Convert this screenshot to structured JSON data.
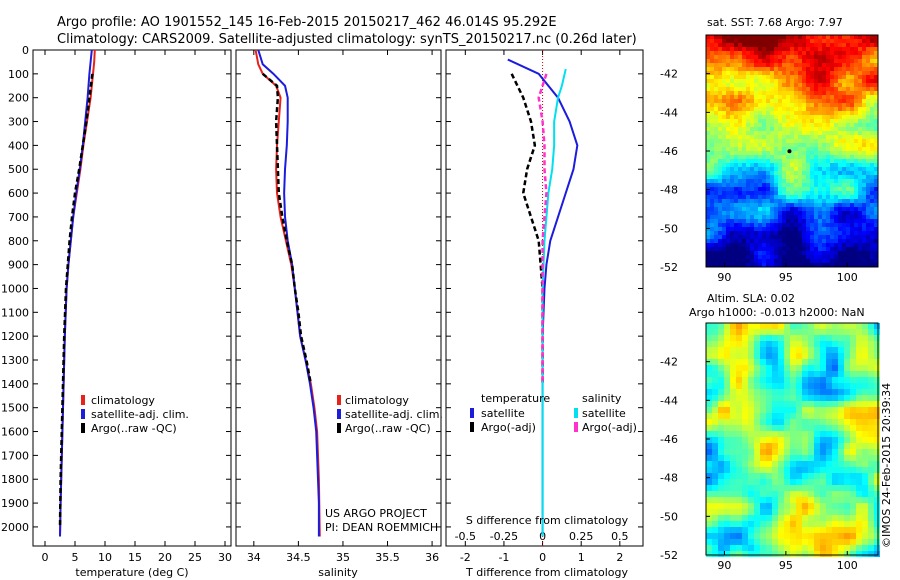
{
  "header": {
    "title_line1": "Argo profile: AO 1901552_145 16-Feb-2015 20150217_462 46.014S 95.292E",
    "title_line2": "Climatology: CARS2009. Satellite-adjusted climatology: synTS_20150217.nc (0.26d later)"
  },
  "credits": {
    "project_line1": "US ARGO PROJECT",
    "project_line2": "PI: DEAN ROEMMICH",
    "stamp": "©IMOS 24-Feb-2015 20:39:34"
  },
  "colors": {
    "climatology": "#e8221b",
    "satellite": "#1c1cdc",
    "argo": "#000000",
    "satellite_s": "#00e0f0",
    "argo_s": "#ff33cc"
  },
  "chart_data": [
    {
      "type": "line",
      "id": "temperature",
      "xlabel": "temperature (deg C)",
      "ylabel": "",
      "xlim": [
        -2,
        31
      ],
      "ylim": [
        2080,
        0
      ],
      "xticks": [
        0,
        5,
        10,
        15,
        20,
        25,
        30
      ],
      "yticks": [
        0,
        100,
        200,
        300,
        400,
        500,
        600,
        700,
        800,
        900,
        1000,
        1100,
        1200,
        1300,
        1400,
        1500,
        1600,
        1700,
        1800,
        1900,
        2000
      ],
      "legend": [
        "climatology",
        "satellite-adj. clim.",
        "Argo(..raw -QC)"
      ],
      "series": [
        {
          "name": "climatology",
          "color": "#e8221b",
          "points": [
            [
              8.3,
              0
            ],
            [
              8.2,
              50
            ],
            [
              8.0,
              100
            ],
            [
              7.6,
              200
            ],
            [
              7.0,
              300
            ],
            [
              6.4,
              400
            ],
            [
              5.9,
              500
            ],
            [
              5.3,
              600
            ],
            [
              4.7,
              700
            ],
            [
              4.3,
              800
            ],
            [
              3.9,
              900
            ],
            [
              3.6,
              1000
            ],
            [
              3.3,
              1200
            ],
            [
              3.1,
              1400
            ],
            [
              2.9,
              1600
            ],
            [
              2.7,
              1800
            ],
            [
              2.6,
              1900
            ],
            [
              2.5,
              2040
            ]
          ]
        },
        {
          "name": "satellite-adj. clim.",
          "color": "#1c1cdc",
          "points": [
            [
              7.8,
              0
            ],
            [
              7.6,
              50
            ],
            [
              7.4,
              100
            ],
            [
              7.1,
              200
            ],
            [
              6.7,
              300
            ],
            [
              6.3,
              400
            ],
            [
              5.8,
              500
            ],
            [
              5.2,
              600
            ],
            [
              4.7,
              700
            ],
            [
              4.3,
              800
            ],
            [
              3.9,
              900
            ],
            [
              3.6,
              1000
            ],
            [
              3.3,
              1200
            ],
            [
              3.1,
              1400
            ],
            [
              2.9,
              1600
            ],
            [
              2.7,
              1800
            ],
            [
              2.6,
              1900
            ],
            [
              2.5,
              2040
            ]
          ]
        },
        {
          "name": "Argo(..raw -QC)",
          "color": "#000000",
          "points": [
            [
              7.9,
              100
            ],
            [
              7.4,
              200
            ],
            [
              6.9,
              300
            ],
            [
              6.3,
              400
            ],
            [
              5.7,
              500
            ],
            [
              5.0,
              600
            ],
            [
              4.5,
              700
            ],
            [
              4.1,
              800
            ],
            [
              3.8,
              900
            ],
            [
              3.5,
              1000
            ],
            [
              3.2,
              1200
            ],
            [
              3.0,
              1400
            ],
            [
              2.8,
              1600
            ],
            [
              2.6,
              1800
            ],
            [
              2.5,
              2000
            ]
          ]
        }
      ]
    },
    {
      "type": "line",
      "id": "salinity",
      "xlabel": "salinity",
      "ylabel": "",
      "xlim": [
        33.8,
        36.1
      ],
      "ylim": [
        2080,
        0
      ],
      "xticks": [
        34,
        34.5,
        35,
        35.5,
        36
      ],
      "legend": [
        "climatology",
        "satellite-adj. clim.",
        "Argo(..raw -QC)"
      ],
      "series": [
        {
          "name": "climatology",
          "color": "#e8221b",
          "points": [
            [
              34.02,
              0
            ],
            [
              34.05,
              60
            ],
            [
              34.1,
              100
            ],
            [
              34.25,
              150
            ],
            [
              34.3,
              200
            ],
            [
              34.28,
              300
            ],
            [
              34.26,
              400
            ],
            [
              34.25,
              500
            ],
            [
              34.26,
              600
            ],
            [
              34.3,
              700
            ],
            [
              34.36,
              800
            ],
            [
              34.42,
              900
            ],
            [
              34.46,
              1000
            ],
            [
              34.49,
              1100
            ],
            [
              34.52,
              1200
            ],
            [
              34.58,
              1300
            ],
            [
              34.64,
              1400
            ],
            [
              34.68,
              1500
            ],
            [
              34.71,
              1600
            ],
            [
              34.73,
              1800
            ],
            [
              34.74,
              2040
            ]
          ]
        },
        {
          "name": "satellite-adj. clim.",
          "color": "#1c1cdc",
          "points": [
            [
              34.05,
              0
            ],
            [
              34.1,
              60
            ],
            [
              34.22,
              100
            ],
            [
              34.35,
              150
            ],
            [
              34.38,
              200
            ],
            [
              34.38,
              300
            ],
            [
              34.37,
              400
            ],
            [
              34.35,
              500
            ],
            [
              34.34,
              600
            ],
            [
              34.35,
              700
            ],
            [
              34.38,
              800
            ],
            [
              34.43,
              900
            ],
            [
              34.46,
              1000
            ],
            [
              34.49,
              1100
            ],
            [
              34.52,
              1200
            ],
            [
              34.58,
              1300
            ],
            [
              34.63,
              1400
            ],
            [
              34.67,
              1500
            ],
            [
              34.7,
              1600
            ],
            [
              34.72,
              1800
            ],
            [
              34.73,
              1900
            ],
            [
              34.73,
              2040
            ]
          ]
        },
        {
          "name": "Argo(..raw -QC)",
          "color": "#000000",
          "points": [
            [
              34.1,
              100
            ],
            [
              34.26,
              150
            ],
            [
              34.27,
              200
            ],
            [
              34.25,
              300
            ],
            [
              34.26,
              400
            ],
            [
              34.27,
              500
            ],
            [
              34.28,
              600
            ],
            [
              34.32,
              700
            ],
            [
              34.37,
              800
            ],
            [
              34.43,
              900
            ],
            [
              34.46,
              1000
            ],
            [
              34.5,
              1100
            ],
            [
              34.53,
              1200
            ],
            [
              34.59,
              1300
            ],
            [
              34.64,
              1400
            ]
          ]
        }
      ]
    },
    {
      "type": "line",
      "id": "differences",
      "xlabel": "T difference from climatology",
      "x2label": "S difference from climatology",
      "xlim": [
        -2.5,
        2.6
      ],
      "ylim": [
        2080,
        0
      ],
      "xticks": [
        -2,
        -1,
        0,
        1,
        2
      ],
      "x2ticks": [
        "-0.5",
        "-0.25",
        "0",
        "0.25",
        "0.5"
      ],
      "legend_headers": [
        "temperature",
        "salinity"
      ],
      "legend": [
        "satellite",
        "Argo(-adj)",
        "satellite",
        "Argo(-adj)"
      ],
      "series": [
        {
          "name": "satellite",
          "group": "temperature",
          "color": "#1c1cdc",
          "points": [
            [
              -0.9,
              40
            ],
            [
              -0.1,
              100
            ],
            [
              0.4,
              200
            ],
            [
              0.7,
              300
            ],
            [
              0.9,
              400
            ],
            [
              0.8,
              500
            ],
            [
              0.6,
              600
            ],
            [
              0.4,
              700
            ],
            [
              0.2,
              800
            ],
            [
              0.1,
              900
            ],
            [
              0.05,
              1000
            ],
            [
              0.0,
              1200
            ],
            [
              0.0,
              2040
            ]
          ]
        },
        {
          "name": "Argo(-adj)",
          "group": "temperature",
          "color": "#000000",
          "points": [
            [
              -0.8,
              100
            ],
            [
              -0.5,
              200
            ],
            [
              -0.3,
              300
            ],
            [
              -0.2,
              400
            ],
            [
              -0.4,
              500
            ],
            [
              -0.5,
              600
            ],
            [
              -0.3,
              700
            ],
            [
              -0.1,
              800
            ],
            [
              0.0,
              1000
            ],
            [
              0.0,
              1400
            ]
          ]
        },
        {
          "name": "satellite",
          "group": "salinity",
          "color": "#00e0f0",
          "points": [
            [
              0.6,
              80
            ],
            [
              0.5,
              150
            ],
            [
              0.4,
              200
            ],
            [
              0.3,
              300
            ],
            [
              0.3,
              400
            ],
            [
              0.25,
              500
            ],
            [
              0.15,
              600
            ],
            [
              0.1,
              700
            ],
            [
              0.05,
              800
            ],
            [
              0.0,
              1000
            ],
            [
              0.0,
              2040
            ]
          ]
        },
        {
          "name": "Argo(-adj)",
          "group": "salinity",
          "color": "#ff33cc",
          "points": [
            [
              0.1,
              100
            ],
            [
              -0.1,
              200
            ],
            [
              0.0,
              300
            ],
            [
              0.05,
              400
            ],
            [
              0.05,
              500
            ],
            [
              0.1,
              600
            ],
            [
              0.05,
              700
            ],
            [
              0.0,
              800
            ],
            [
              0.0,
              1000
            ],
            [
              0.0,
              1400
            ]
          ]
        }
      ]
    },
    {
      "type": "heatmap",
      "id": "sst-map",
      "title": "sat. SST: 7.68 Argo: 7.97",
      "xlim": [
        88.5,
        102.5
      ],
      "ylim": [
        -52,
        -40
      ],
      "xticks": [
        90,
        95,
        100
      ],
      "yticks": [
        -42,
        -44,
        -46,
        -48,
        -50,
        -52
      ],
      "argo_position": [
        95.292,
        -46.014
      ]
    },
    {
      "type": "heatmap",
      "id": "sla-map",
      "title_line1": "Altim. SLA: 0.02",
      "title_line2": "Argo h1000: -0.013 h2000: NaN",
      "xlim": [
        88.5,
        102.5
      ],
      "ylim": [
        -52,
        -40
      ],
      "xticks": [
        90,
        95,
        100
      ],
      "yticks": [
        -42,
        -44,
        -46,
        -48,
        -50,
        -52
      ]
    }
  ]
}
